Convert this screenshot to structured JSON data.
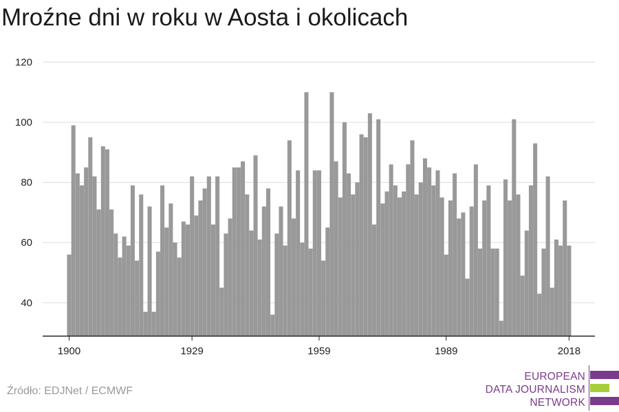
{
  "title": "Mroźne dni w roku w Aosta i okolicach",
  "source": "Źródło: EDJNet / ECMWF",
  "logo": {
    "lines": [
      "EUROPEAN",
      "DATA JOURNALISM",
      "NETWORK"
    ],
    "colors": {
      "purple": "#7a3b8c",
      "green": "#a6ce39"
    }
  },
  "chart_data": {
    "type": "bar",
    "xlabel": "",
    "ylabel": "",
    "x_start": 1900,
    "x_ticks": [
      "1900",
      "1929",
      "1959",
      "1989",
      "2018"
    ],
    "y_ticks": [
      40,
      60,
      80,
      100,
      120
    ],
    "ylim": [
      29,
      120
    ],
    "grid": true,
    "bar_color": "#999999",
    "values": [
      56,
      99,
      83,
      79,
      85,
      95,
      82,
      71,
      92,
      91,
      71,
      63,
      55,
      62,
      59,
      79,
      54,
      76,
      37,
      72,
      37,
      57,
      79,
      65,
      73,
      60,
      55,
      67,
      66,
      82,
      69,
      74,
      78,
      82,
      66,
      82,
      45,
      63,
      68,
      85,
      85,
      87,
      76,
      64,
      89,
      61,
      72,
      78,
      36,
      63,
      72,
      59,
      94,
      68,
      84,
      60,
      110,
      58,
      84,
      84,
      54,
      65,
      110,
      87,
      75,
      100,
      83,
      76,
      80,
      96,
      95,
      103,
      66,
      101,
      73,
      77,
      86,
      79,
      75,
      77,
      86,
      94,
      76,
      80,
      88,
      85,
      79,
      84,
      75,
      56,
      74,
      83,
      68,
      70,
      48,
      72,
      86,
      58,
      74,
      79,
      58,
      58,
      34,
      81,
      74,
      101,
      76,
      49,
      64,
      79,
      93,
      43,
      58,
      82,
      45,
      61,
      59,
      74,
      59
    ]
  }
}
